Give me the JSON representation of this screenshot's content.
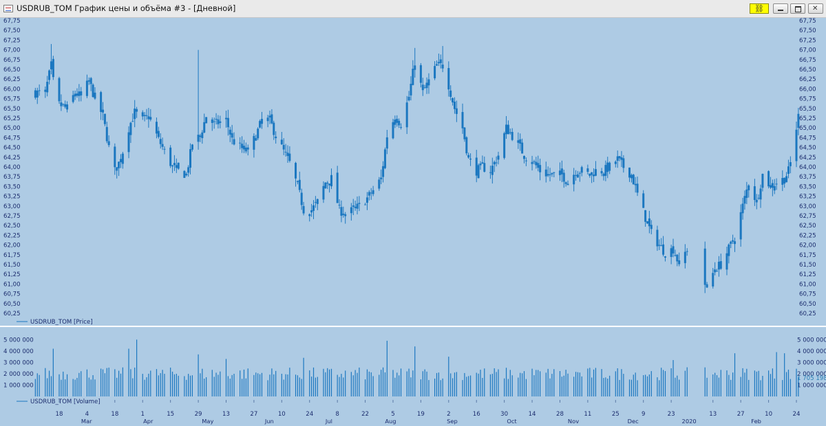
{
  "window": {
    "title": "USDRUB_TOM График цены и объёма #3 - [Дневной]",
    "link_icon": "chain-link-icon",
    "buttons": [
      "minimize-icon",
      "maximize-icon",
      "close-icon"
    ]
  },
  "colors": {
    "background": "#aecbe4",
    "series": "#1b77c0",
    "divider": "#ffffff",
    "text": "#1c2d6e"
  },
  "chart_data": [
    {
      "type": "candlestick",
      "legend": "USDRUB_TOM [Price]",
      "y_ticks": [
        "60,25",
        "60,50",
        "60,75",
        "61,00",
        "61,25",
        "61,50",
        "61,75",
        "62,00",
        "62,25",
        "62,50",
        "62,75",
        "63,00",
        "63,25",
        "63,50",
        "63,75",
        "64,00",
        "64,25",
        "64,50",
        "64,75",
        "65,00",
        "65,25",
        "65,50",
        "65,75",
        "66,00",
        "66,25",
        "66,50",
        "66,75",
        "67,00",
        "67,25",
        "67,50",
        "67,75"
      ],
      "ylim": [
        60.25,
        67.75
      ],
      "y_axis_both_sides": true,
      "anchors": [
        {
          "date": "2019-02-11",
          "close": 65.9
        },
        {
          "date": "2019-02-14",
          "close": 66.6
        },
        {
          "date": "2019-02-15",
          "close": 66.2
        },
        {
          "date": "2019-02-18",
          "close": 65.6
        },
        {
          "date": "2019-02-22",
          "close": 65.5
        },
        {
          "date": "2019-02-26",
          "close": 65.9
        },
        {
          "date": "2019-03-01",
          "close": 65.8
        },
        {
          "date": "2019-03-05",
          "close": 66.2
        },
        {
          "date": "2019-03-07",
          "close": 65.9
        },
        {
          "date": "2019-03-12",
          "close": 65.3
        },
        {
          "date": "2019-03-15",
          "close": 64.5
        },
        {
          "date": "2019-03-18",
          "close": 63.9
        },
        {
          "date": "2019-03-21",
          "close": 64.2
        },
        {
          "date": "2019-03-25",
          "close": 65.0
        },
        {
          "date": "2019-03-28",
          "close": 65.4
        },
        {
          "date": "2019-04-01",
          "close": 65.2
        },
        {
          "date": "2019-04-04",
          "close": 65.3
        },
        {
          "date": "2019-04-09",
          "close": 64.7
        },
        {
          "date": "2019-04-12",
          "close": 64.4
        },
        {
          "date": "2019-04-16",
          "close": 64.0
        },
        {
          "date": "2019-04-19",
          "close": 63.9
        },
        {
          "date": "2019-04-23",
          "close": 63.8
        },
        {
          "date": "2019-04-26",
          "close": 64.6
        },
        {
          "date": "2019-04-30",
          "close": 64.8
        },
        {
          "date": "2019-05-03",
          "close": 65.3
        },
        {
          "date": "2019-05-07",
          "close": 65.1
        },
        {
          "date": "2019-05-13",
          "close": 65.2
        },
        {
          "date": "2019-05-16",
          "close": 64.7
        },
        {
          "date": "2019-05-20",
          "close": 64.5
        },
        {
          "date": "2019-05-24",
          "close": 64.4
        },
        {
          "date": "2019-05-28",
          "close": 64.8
        },
        {
          "date": "2019-05-31",
          "close": 65.2
        },
        {
          "date": "2019-06-04",
          "close": 65.2
        },
        {
          "date": "2019-06-07",
          "close": 64.8
        },
        {
          "date": "2019-06-11",
          "close": 64.4
        },
        {
          "date": "2019-06-14",
          "close": 64.1
        },
        {
          "date": "2019-06-18",
          "close": 63.5
        },
        {
          "date": "2019-06-21",
          "close": 62.9
        },
        {
          "date": "2019-06-25",
          "close": 62.9
        },
        {
          "date": "2019-06-28",
          "close": 63.1
        },
        {
          "date": "2019-07-02",
          "close": 63.6
        },
        {
          "date": "2019-07-05",
          "close": 63.7
        },
        {
          "date": "2019-07-09",
          "close": 62.9
        },
        {
          "date": "2019-07-12",
          "close": 62.8
        },
        {
          "date": "2019-07-16",
          "close": 62.9
        },
        {
          "date": "2019-07-19",
          "close": 63.0
        },
        {
          "date": "2019-07-23",
          "close": 63.2
        },
        {
          "date": "2019-07-26",
          "close": 63.4
        },
        {
          "date": "2019-07-30",
          "close": 63.7
        },
        {
          "date": "2019-08-02",
          "close": 64.8
        },
        {
          "date": "2019-08-06",
          "close": 65.3
        },
        {
          "date": "2019-08-09",
          "close": 65.1
        },
        {
          "date": "2019-08-13",
          "close": 65.8
        },
        {
          "date": "2019-08-15",
          "close": 66.4
        },
        {
          "date": "2019-08-16",
          "close": 66.7
        },
        {
          "date": "2019-08-20",
          "close": 65.9
        },
        {
          "date": "2019-08-23",
          "close": 66.2
        },
        {
          "date": "2019-08-27",
          "close": 66.6
        },
        {
          "date": "2019-08-30",
          "close": 66.6
        },
        {
          "date": "2019-09-02",
          "close": 66.1
        },
        {
          "date": "2019-09-05",
          "close": 65.5
        },
        {
          "date": "2019-09-09",
          "close": 65.0
        },
        {
          "date": "2019-09-12",
          "close": 64.2
        },
        {
          "date": "2019-09-16",
          "close": 63.9
        },
        {
          "date": "2019-09-19",
          "close": 64.0
        },
        {
          "date": "2019-09-23",
          "close": 63.9
        },
        {
          "date": "2019-09-27",
          "close": 64.3
        },
        {
          "date": "2019-10-01",
          "close": 65.0
        },
        {
          "date": "2019-10-04",
          "close": 64.8
        },
        {
          "date": "2019-10-07",
          "close": 64.6
        },
        {
          "date": "2019-10-10",
          "close": 64.3
        },
        {
          "date": "2019-10-15",
          "close": 64.1
        },
        {
          "date": "2019-10-18",
          "close": 63.9
        },
        {
          "date": "2019-10-22",
          "close": 63.8
        },
        {
          "date": "2019-10-25",
          "close": 63.8
        },
        {
          "date": "2019-10-29",
          "close": 63.8
        },
        {
          "date": "2019-11-01",
          "close": 63.6
        },
        {
          "date": "2019-11-05",
          "close": 63.9
        },
        {
          "date": "2019-11-08",
          "close": 63.9
        },
        {
          "date": "2019-11-12",
          "close": 63.8
        },
        {
          "date": "2019-11-15",
          "close": 63.9
        },
        {
          "date": "2019-11-19",
          "close": 63.9
        },
        {
          "date": "2019-11-22",
          "close": 64.0
        },
        {
          "date": "2019-11-26",
          "close": 64.2
        },
        {
          "date": "2019-11-29",
          "close": 64.0
        },
        {
          "date": "2019-12-03",
          "close": 63.8
        },
        {
          "date": "2019-12-06",
          "close": 63.3
        },
        {
          "date": "2019-12-10",
          "close": 62.7
        },
        {
          "date": "2019-12-13",
          "close": 62.3
        },
        {
          "date": "2019-12-17",
          "close": 62.0
        },
        {
          "date": "2019-12-20",
          "close": 61.8
        },
        {
          "date": "2019-12-24",
          "close": 61.9
        },
        {
          "date": "2019-12-27",
          "close": 61.5
        },
        {
          "date": "2019-12-31",
          "close": 61.9
        },
        {
          "date": "2020-01-10",
          "close": 60.9
        },
        {
          "date": "2020-01-14",
          "close": 61.4
        },
        {
          "date": "2020-01-17",
          "close": 61.5
        },
        {
          "date": "2020-01-21",
          "close": 61.9
        },
        {
          "date": "2020-01-24",
          "close": 62.2
        },
        {
          "date": "2020-01-28",
          "close": 63.0
        },
        {
          "date": "2020-01-31",
          "close": 63.6
        },
        {
          "date": "2020-02-04",
          "close": 63.1
        },
        {
          "date": "2020-02-07",
          "close": 63.8
        },
        {
          "date": "2020-02-11",
          "close": 63.5
        },
        {
          "date": "2020-02-14",
          "close": 63.6
        },
        {
          "date": "2020-02-18",
          "close": 63.7
        },
        {
          "date": "2020-02-20",
          "close": 63.9
        },
        {
          "date": "2020-02-21",
          "close": 64.1
        },
        {
          "date": "2020-02-25",
          "close": 65.3
        }
      ],
      "spikes": [
        {
          "date": "2019-02-14",
          "high": 67.15
        },
        {
          "date": "2019-04-29",
          "high": 67.0
        },
        {
          "date": "2019-08-16",
          "high": 67.05
        },
        {
          "date": "2019-08-30",
          "high": 67.1
        },
        {
          "date": "2020-01-10",
          "low": 60.9
        }
      ]
    },
    {
      "type": "bar",
      "legend": "USDRUB_TOM [Volume]",
      "y_ticks": [
        "1 000 000",
        "2 000 000",
        "3 000 000",
        "4 000 000",
        "5 000 000"
      ],
      "ylim": [
        0,
        5500000
      ],
      "last_value_label": "1 705 198",
      "last_value": 1705198,
      "typical_volume": 1900000,
      "high_volume": [
        {
          "date": "2019-02-15",
          "value": 4200000
        },
        {
          "date": "2019-03-25",
          "value": 4200000
        },
        {
          "date": "2019-03-29",
          "value": 5000000
        },
        {
          "date": "2019-04-29",
          "value": 3700000
        },
        {
          "date": "2019-05-13",
          "value": 3300000
        },
        {
          "date": "2019-06-21",
          "value": 3400000
        },
        {
          "date": "2019-08-02",
          "value": 4900000
        },
        {
          "date": "2019-08-16",
          "value": 4400000
        },
        {
          "date": "2019-09-02",
          "value": 3500000
        },
        {
          "date": "2019-12-24",
          "value": 3200000
        },
        {
          "date": "2020-01-24",
          "value": 3800000
        },
        {
          "date": "2020-02-14",
          "value": 3900000
        },
        {
          "date": "2020-02-18",
          "value": 3800000
        }
      ]
    }
  ],
  "x_axis": {
    "day_ticks": [
      {
        "date": "2019-02-18",
        "label": "18"
      },
      {
        "date": "2019-03-04",
        "label": "4"
      },
      {
        "date": "2019-03-18",
        "label": "18"
      },
      {
        "date": "2019-04-01",
        "label": "1"
      },
      {
        "date": "2019-04-15",
        "label": "15"
      },
      {
        "date": "2019-04-29",
        "label": "29"
      },
      {
        "date": "2019-05-13",
        "label": "13"
      },
      {
        "date": "2019-05-27",
        "label": "27"
      },
      {
        "date": "2019-06-10",
        "label": "10"
      },
      {
        "date": "2019-06-24",
        "label": "24"
      },
      {
        "date": "2019-07-08",
        "label": "8"
      },
      {
        "date": "2019-07-22",
        "label": "22"
      },
      {
        "date": "2019-08-05",
        "label": "5"
      },
      {
        "date": "2019-08-19",
        "label": "19"
      },
      {
        "date": "2019-09-02",
        "label": "2"
      },
      {
        "date": "2019-09-16",
        "label": "16"
      },
      {
        "date": "2019-09-30",
        "label": "30"
      },
      {
        "date": "2019-10-14",
        "label": "14"
      },
      {
        "date": "2019-10-28",
        "label": "28"
      },
      {
        "date": "2019-11-11",
        "label": "11"
      },
      {
        "date": "2019-11-25",
        "label": "25"
      },
      {
        "date": "2019-12-09",
        "label": "9"
      },
      {
        "date": "2019-12-23",
        "label": "23"
      },
      {
        "date": "2020-01-13",
        "label": "13"
      },
      {
        "date": "2020-01-27",
        "label": "27"
      },
      {
        "date": "2020-02-10",
        "label": "10"
      },
      {
        "date": "2020-02-24",
        "label": "24"
      }
    ],
    "month_labels": [
      {
        "date": "2019-03-01",
        "label": "Mar"
      },
      {
        "date": "2019-04-01",
        "label": "Apr"
      },
      {
        "date": "2019-05-01",
        "label": "May"
      },
      {
        "date": "2019-06-01",
        "label": "Jun"
      },
      {
        "date": "2019-07-01",
        "label": "Jul"
      },
      {
        "date": "2019-08-01",
        "label": "Aug"
      },
      {
        "date": "2019-09-01",
        "label": "Sep"
      },
      {
        "date": "2019-10-01",
        "label": "Oct"
      },
      {
        "date": "2019-11-01",
        "label": "Nov"
      },
      {
        "date": "2019-12-01",
        "label": "Dec"
      },
      {
        "date": "2020-01-01",
        "label": "2020"
      },
      {
        "date": "2020-02-01",
        "label": "Feb"
      }
    ]
  }
}
